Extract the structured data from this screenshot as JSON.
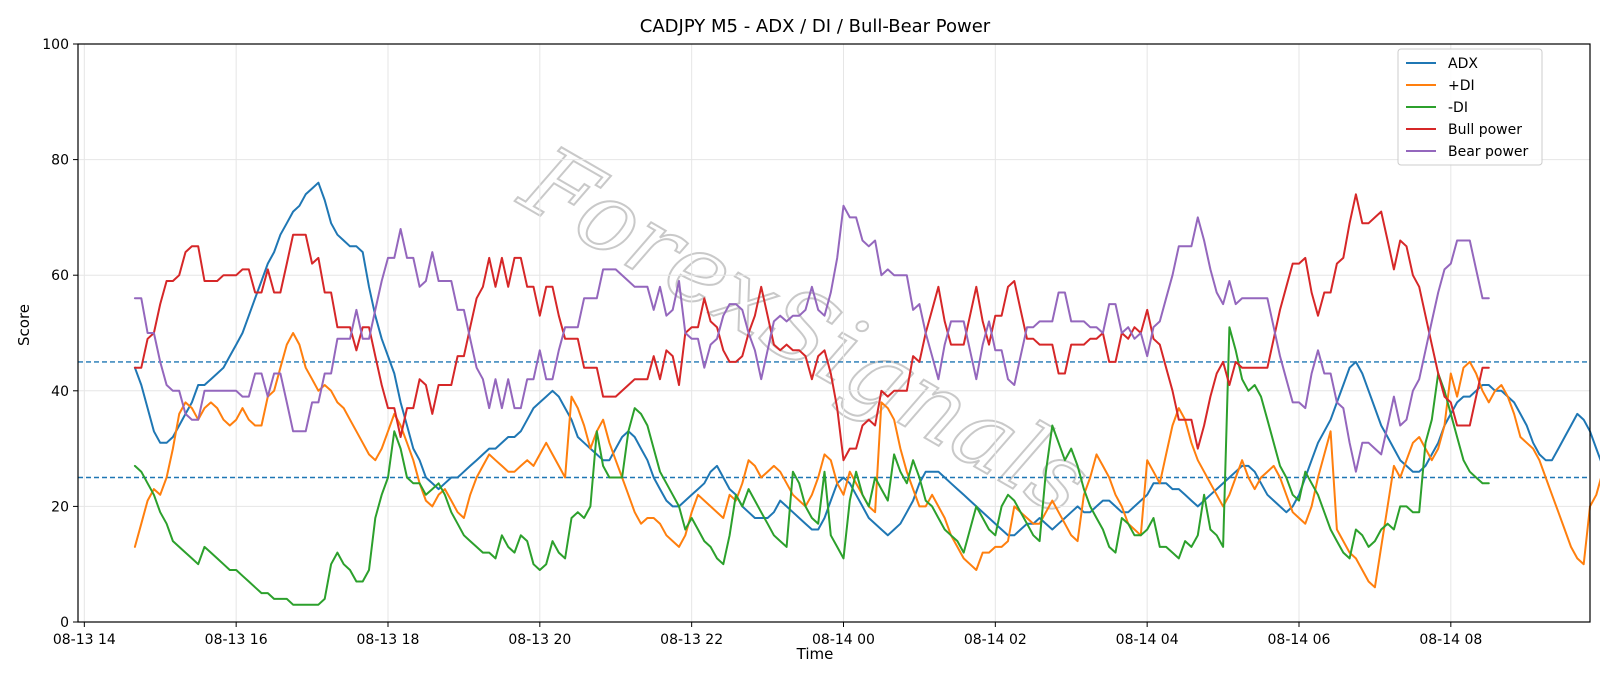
{
  "chart_data": {
    "type": "line",
    "title": "CADJPY M5 - ADX / DI / Bull-Bear Power",
    "xlabel": "Time",
    "ylabel": "Score",
    "ylim": [
      0,
      100
    ],
    "xlim": [
      "2025-08-13 13:55",
      "2025-08-14 09:50"
    ],
    "y_ticks": [
      0,
      20,
      40,
      60,
      80,
      100
    ],
    "x_ticks": [
      {
        "t": "2025-08-13 14:00",
        "label": "08-13 14"
      },
      {
        "t": "2025-08-13 16:00",
        "label": "08-13 16"
      },
      {
        "t": "2025-08-13 18:00",
        "label": "08-13 18"
      },
      {
        "t": "2025-08-13 20:00",
        "label": "08-13 20"
      },
      {
        "t": "2025-08-13 22:00",
        "label": "08-13 22"
      },
      {
        "t": "2025-08-14 00:00",
        "label": "08-14 00"
      },
      {
        "t": "2025-08-14 02:00",
        "label": "08-14 02"
      },
      {
        "t": "2025-08-14 04:00",
        "label": "08-14 04"
      },
      {
        "t": "2025-08-14 06:00",
        "label": "08-14 06"
      },
      {
        "t": "2025-08-14 08:00",
        "label": "08-14 08"
      }
    ],
    "grid": true,
    "legend_position": "top-right",
    "hlines": [
      {
        "y": 45,
        "style": "dashed",
        "color": "#1f77b4"
      },
      {
        "y": 25,
        "style": "dashed",
        "color": "#1f77b4"
      }
    ],
    "watermark": "ForexSignals",
    "x_start": "2025-08-13 14:40",
    "x_step_minutes": 5,
    "series": [
      {
        "name": "ADX",
        "color": "#1f77b4",
        "values": [
          44,
          41,
          37,
          33,
          31,
          31,
          32,
          34,
          36,
          38,
          41,
          41,
          42,
          43,
          44,
          46,
          48,
          50,
          53,
          56,
          59,
          62,
          64,
          67,
          69,
          71,
          72,
          74,
          75,
          76,
          73,
          69,
          67,
          66,
          65,
          65,
          64,
          58,
          53,
          49,
          46,
          43,
          38,
          34,
          30,
          28,
          25,
          24,
          23,
          24,
          25,
          25,
          26,
          27,
          28,
          29,
          30,
          30,
          31,
          32,
          32,
          33,
          35,
          37,
          38,
          39,
          40,
          39,
          37,
          35,
          32,
          31,
          30,
          29,
          28,
          28,
          30,
          32,
          33,
          32,
          30,
          28,
          25,
          23,
          21,
          20,
          20,
          21,
          22,
          23,
          24,
          26,
          27,
          25,
          23,
          22,
          20,
          19,
          18,
          18,
          18,
          19,
          21,
          20,
          19,
          18,
          17,
          16,
          16,
          18,
          21,
          24,
          25,
          24,
          22,
          20,
          18,
          17,
          16,
          15,
          16,
          17,
          19,
          21,
          24,
          26,
          26,
          26,
          25,
          24,
          23,
          22,
          21,
          20,
          19,
          18,
          17,
          16,
          15,
          15,
          16,
          17,
          17,
          18,
          17,
          16,
          17,
          18,
          19,
          20,
          19,
          19,
          20,
          21,
          21,
          20,
          19,
          19,
          20,
          21,
          22,
          24,
          24,
          24,
          23,
          23,
          22,
          21,
          20,
          21,
          22,
          23,
          24,
          25,
          26,
          27,
          27,
          26,
          24,
          22,
          21,
          20,
          19,
          20,
          22,
          25,
          28,
          31,
          33,
          35,
          38,
          41,
          44,
          45,
          43,
          40,
          37,
          34,
          32,
          30,
          28,
          27,
          26,
          26,
          27,
          29,
          31,
          34,
          36,
          38,
          39,
          39,
          40,
          41,
          41,
          40,
          40,
          39,
          38,
          36,
          34,
          31,
          29,
          28,
          28,
          30,
          32,
          34,
          36,
          35,
          33,
          30,
          27,
          24
        ]
      },
      {
        "name": "+DI",
        "color": "#ff7f0e",
        "values": [
          13,
          17,
          21,
          23,
          22,
          25,
          30,
          36,
          38,
          37,
          35,
          37,
          38,
          37,
          35,
          34,
          35,
          37,
          35,
          34,
          34,
          39,
          40,
          44,
          48,
          50,
          48,
          44,
          42,
          40,
          41,
          40,
          38,
          37,
          35,
          33,
          31,
          29,
          28,
          30,
          33,
          36,
          34,
          31,
          28,
          24,
          21,
          20,
          22,
          23,
          21,
          19,
          18,
          22,
          25,
          27,
          29,
          28,
          27,
          26,
          26,
          27,
          28,
          27,
          29,
          31,
          29,
          27,
          25,
          39,
          37,
          34,
          30,
          33,
          35,
          31,
          28,
          25,
          22,
          19,
          17,
          18,
          18,
          17,
          15,
          14,
          13,
          15,
          19,
          22,
          21,
          20,
          19,
          18,
          22,
          21,
          24,
          28,
          27,
          25,
          26,
          27,
          26,
          24,
          22,
          21,
          20,
          22,
          25,
          29,
          28,
          24,
          22,
          26,
          24,
          22,
          20,
          19,
          38,
          37,
          35,
          30,
          26,
          23,
          20,
          20,
          22,
          20,
          18,
          15,
          13,
          11,
          10,
          9,
          12,
          12,
          13,
          13,
          14,
          20,
          19,
          18,
          17,
          17,
          19,
          21,
          19,
          17,
          15,
          14,
          22,
          25,
          29,
          27,
          25,
          22,
          20,
          17,
          16,
          15,
          28,
          26,
          24,
          29,
          34,
          37,
          35,
          31,
          28,
          26,
          24,
          22,
          20,
          22,
          25,
          28,
          25,
          23,
          25,
          26,
          27,
          25,
          22,
          19,
          18,
          17,
          20,
          25,
          29,
          33,
          16,
          14,
          12,
          11,
          9,
          7,
          6,
          13,
          20,
          27,
          25,
          28,
          31,
          32,
          30,
          28,
          30,
          34,
          43,
          39,
          44,
          45,
          43,
          40,
          38,
          40,
          41,
          39,
          36,
          32,
          31,
          30,
          28,
          25,
          22,
          19,
          16,
          13,
          11,
          10,
          20,
          22,
          26,
          24,
          27
        ]
      },
      {
        "name": "-DI",
        "color": "#2ca02c",
        "values": [
          27,
          26,
          24,
          22,
          19,
          17,
          14,
          13,
          12,
          11,
          10,
          13,
          12,
          11,
          10,
          9,
          9,
          8,
          7,
          6,
          5,
          5,
          4,
          4,
          4,
          3,
          3,
          3,
          3,
          3,
          4,
          10,
          12,
          10,
          9,
          7,
          7,
          9,
          18,
          22,
          25,
          33,
          30,
          25,
          24,
          24,
          22,
          23,
          24,
          22,
          19,
          17,
          15,
          14,
          13,
          12,
          12,
          11,
          15,
          13,
          12,
          15,
          14,
          10,
          9,
          10,
          14,
          12,
          11,
          18,
          19,
          18,
          20,
          33,
          27,
          25,
          25,
          25,
          33,
          37,
          36,
          34,
          30,
          26,
          24,
          22,
          20,
          16,
          18,
          16,
          14,
          13,
          11,
          10,
          15,
          22,
          20,
          23,
          21,
          19,
          17,
          15,
          14,
          13,
          26,
          24,
          20,
          18,
          17,
          26,
          15,
          13,
          11,
          21,
          26,
          22,
          20,
          25,
          23,
          21,
          29,
          26,
          24,
          28,
          25,
          21,
          20,
          18,
          16,
          15,
          14,
          12,
          16,
          20,
          18,
          16,
          15,
          20,
          22,
          21,
          19,
          17,
          15,
          14,
          26,
          34,
          31,
          28,
          30,
          27,
          23,
          20,
          18,
          16,
          13,
          12,
          18,
          17,
          15,
          15,
          16,
          18,
          13,
          13,
          12,
          11,
          14,
          13,
          15,
          22,
          16,
          15,
          13,
          51,
          47,
          42,
          40,
          41,
          39,
          35,
          31,
          27,
          25,
          22,
          21,
          26,
          24,
          22,
          19,
          16,
          14,
          12,
          11,
          16,
          15,
          13,
          14,
          16,
          17,
          16,
          20,
          20,
          19,
          19,
          31,
          35,
          43,
          40,
          36,
          32,
          28,
          26,
          25,
          24,
          24
        ]
      },
      {
        "name": "Bull power",
        "color": "#d62728",
        "values": [
          44,
          44,
          49,
          50,
          55,
          59,
          59,
          60,
          64,
          65,
          65,
          59,
          59,
          59,
          60,
          60,
          60,
          61,
          61,
          57,
          57,
          61,
          57,
          57,
          62,
          67,
          67,
          67,
          62,
          63,
          57,
          57,
          51,
          51,
          51,
          47,
          51,
          51,
          46,
          41,
          37,
          37,
          32,
          37,
          37,
          42,
          41,
          36,
          41,
          41,
          41,
          46,
          46,
          51,
          56,
          58,
          63,
          58,
          63,
          58,
          63,
          63,
          58,
          58,
          53,
          58,
          58,
          53,
          49,
          49,
          49,
          44,
          44,
          44,
          39,
          39,
          39,
          40,
          41,
          42,
          42,
          42,
          46,
          42,
          47,
          46,
          41,
          50,
          51,
          51,
          56,
          52,
          51,
          47,
          45,
          45,
          46,
          50,
          53,
          58,
          53,
          48,
          47,
          48,
          47,
          47,
          46,
          42,
          46,
          47,
          43,
          37,
          28,
          30,
          30,
          34,
          35,
          34,
          40,
          39,
          40,
          40,
          40,
          46,
          45,
          50,
          54,
          58,
          52,
          48,
          48,
          48,
          53,
          58,
          52,
          48,
          53,
          53,
          58,
          59,
          54,
          49,
          49,
          48,
          48,
          48,
          43,
          43,
          48,
          48,
          48,
          49,
          49,
          50,
          45,
          45,
          50,
          49,
          51,
          50,
          54,
          49,
          48,
          44,
          40,
          35,
          35,
          35,
          30,
          34,
          39,
          43,
          45,
          41,
          45,
          44,
          44,
          44,
          44,
          44,
          49,
          54,
          58,
          62,
          62,
          63,
          57,
          53,
          57,
          57,
          62,
          63,
          69,
          74,
          69,
          69,
          70,
          71,
          66,
          61,
          66,
          65,
          60,
          58,
          53,
          48,
          43,
          39,
          38,
          34,
          34,
          34,
          39,
          44,
          44
        ]
      },
      {
        "name": "Bear power",
        "color": "#9467bd",
        "values": [
          56,
          56,
          50,
          50,
          45,
          41,
          40,
          40,
          36,
          35,
          35,
          40,
          40,
          40,
          40,
          40,
          40,
          39,
          39,
          43,
          43,
          39,
          43,
          43,
          38,
          33,
          33,
          33,
          38,
          38,
          43,
          43,
          49,
          49,
          49,
          54,
          49,
          49,
          54,
          59,
          63,
          63,
          68,
          63,
          63,
          58,
          59,
          64,
          59,
          59,
          59,
          54,
          54,
          49,
          44,
          42,
          37,
          42,
          37,
          42,
          37,
          37,
          42,
          42,
          47,
          42,
          42,
          47,
          51,
          51,
          51,
          56,
          56,
          56,
          61,
          61,
          61,
          60,
          59,
          58,
          58,
          58,
          54,
          58,
          53,
          54,
          59,
          50,
          49,
          49,
          44,
          48,
          49,
          53,
          55,
          55,
          54,
          50,
          47,
          42,
          47,
          52,
          53,
          52,
          53,
          53,
          54,
          58,
          54,
          53,
          57,
          63,
          72,
          70,
          70,
          66,
          65,
          66,
          60,
          61,
          60,
          60,
          60,
          54,
          55,
          50,
          46,
          42,
          48,
          52,
          52,
          52,
          47,
          42,
          48,
          52,
          47,
          47,
          42,
          41,
          46,
          51,
          51,
          52,
          52,
          52,
          57,
          57,
          52,
          52,
          52,
          51,
          51,
          50,
          55,
          55,
          50,
          51,
          49,
          50,
          46,
          51,
          52,
          56,
          60,
          65,
          65,
          65,
          70,
          66,
          61,
          57,
          55,
          59,
          55,
          56,
          56,
          56,
          56,
          56,
          51,
          46,
          42,
          38,
          38,
          37,
          43,
          47,
          43,
          43,
          38,
          37,
          31,
          26,
          31,
          31,
          30,
          29,
          34,
          39,
          34,
          35,
          40,
          42,
          47,
          52,
          57,
          61,
          62,
          66,
          66,
          66,
          61,
          56,
          56
        ]
      }
    ]
  }
}
